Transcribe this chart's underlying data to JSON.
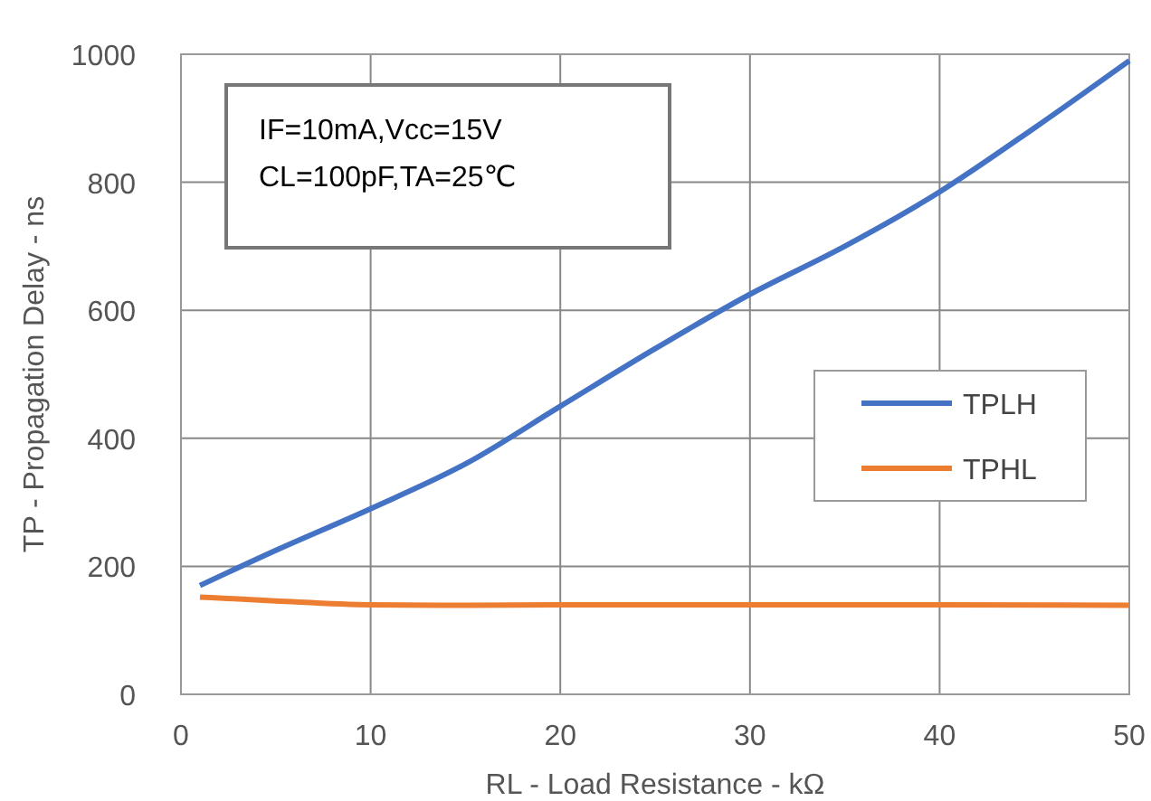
{
  "chart_data": {
    "type": "line",
    "xlabel": "RL - Load Resistance - kΩ",
    "ylabel": "TP - Propagation Delay - ns",
    "annotations": [
      "IF=10mA,Vcc=15V",
      "CL=100pF,TA=25℃"
    ],
    "xlim": [
      0,
      50
    ],
    "xticks": [
      0,
      10,
      20,
      30,
      40,
      50
    ],
    "ylim": [
      0,
      1000
    ],
    "yticks": [
      0,
      200,
      400,
      600,
      800,
      1000
    ],
    "grid": true,
    "legend": "right",
    "line_style": "solid",
    "marker": "none",
    "series": [
      {
        "name": "TPLH",
        "color": "#4472c4",
        "x": [
          1,
          5,
          10,
          15,
          20,
          25,
          30,
          35,
          40,
          45,
          50
        ],
        "values": [
          170,
          225,
          290,
          360,
          450,
          540,
          625,
          700,
          785,
          885,
          990
        ]
      },
      {
        "name": "TPHL",
        "color": "#ed7d31",
        "x": [
          1,
          5,
          10,
          15,
          20,
          30,
          40,
          50
        ],
        "values": [
          152,
          146,
          140,
          139,
          140,
          140,
          140,
          139
        ]
      }
    ]
  }
}
